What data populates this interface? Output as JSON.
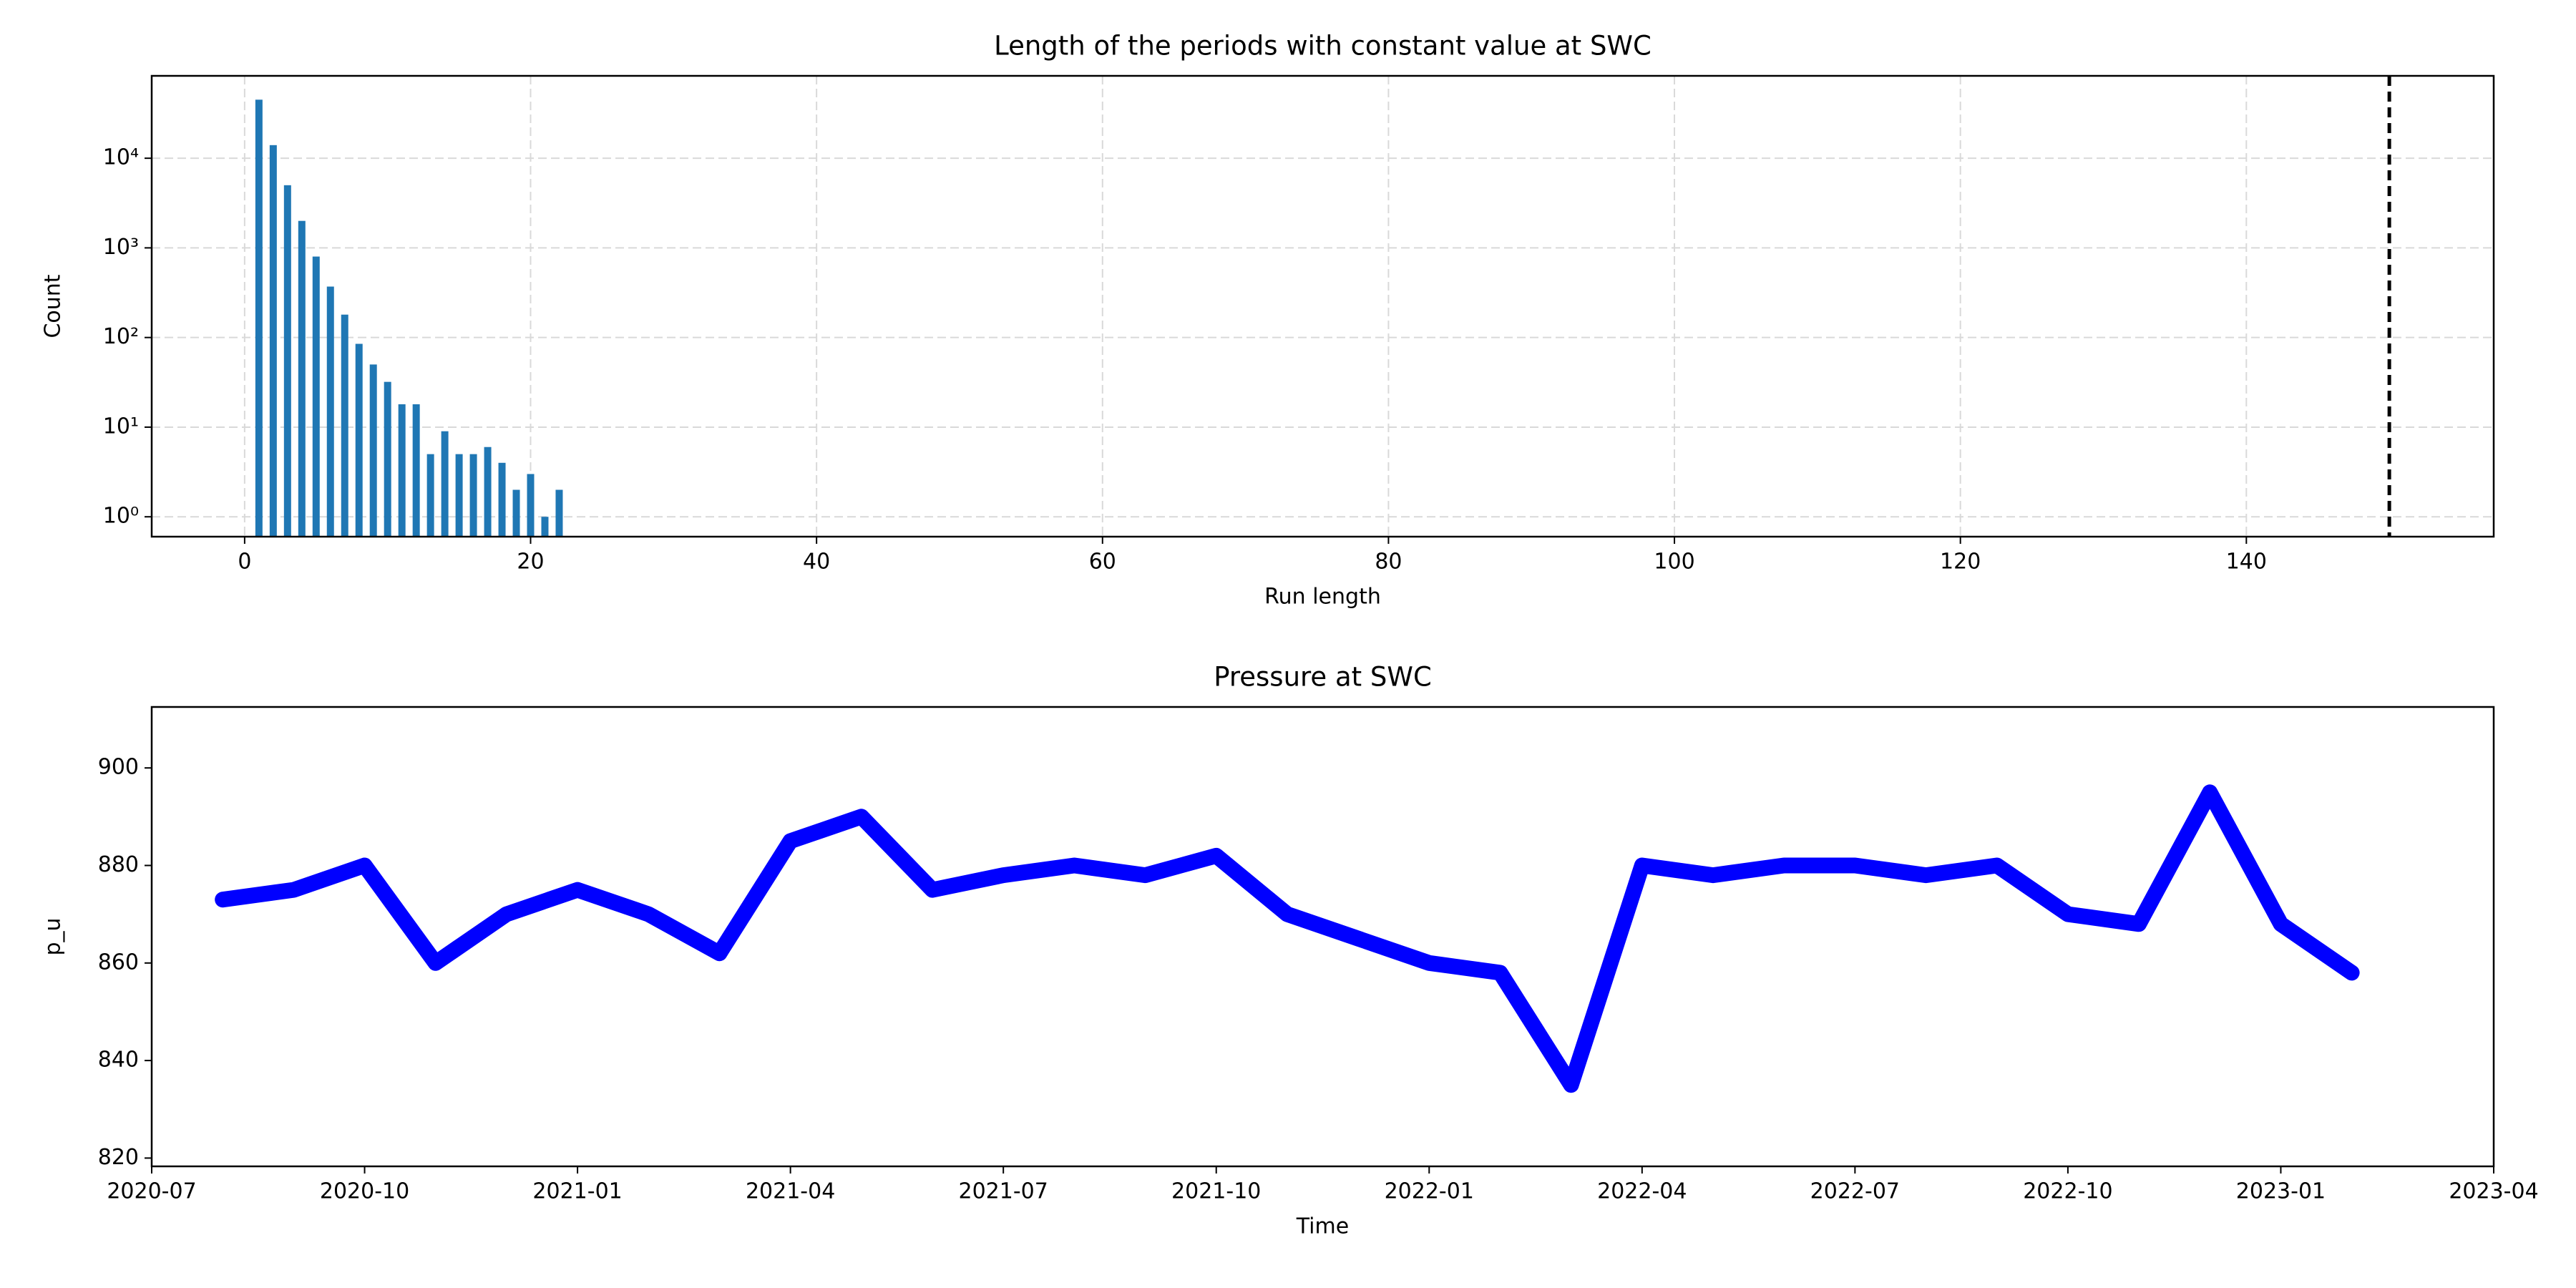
{
  "chart_data": [
    {
      "type": "bar",
      "title": "Length of the periods with constant value at SWC",
      "xlabel": "Run length",
      "ylabel": "Count",
      "x": [
        1,
        2,
        3,
        4,
        5,
        6,
        7,
        8,
        9,
        10,
        11,
        12,
        13,
        14,
        15,
        16,
        17,
        18,
        19,
        20,
        21,
        22
      ],
      "values": [
        45000,
        14000,
        5000,
        2000,
        800,
        370,
        180,
        85,
        50,
        32,
        18,
        18,
        5,
        9,
        5,
        5,
        6,
        4,
        2,
        3,
        1,
        2
      ],
      "color": "#1f77b4",
      "log_y": true,
      "grid": true,
      "vline": 150,
      "xlim": [
        -6.5,
        157.3
      ],
      "xticks": [
        0,
        20,
        40,
        60,
        80,
        100,
        120,
        140
      ],
      "ylim": [
        0.6,
        83000
      ],
      "yticks": [
        {
          "value": 1,
          "label": "10⁰"
        },
        {
          "value": 10,
          "label": "10¹"
        },
        {
          "value": 100,
          "label": "10²"
        },
        {
          "value": 1000,
          "label": "10³"
        },
        {
          "value": 10000,
          "label": "10⁴"
        }
      ]
    },
    {
      "type": "line",
      "title": "Pressure at SWC",
      "xlabel": "Time",
      "ylabel": "p_u",
      "color": "#0000ff",
      "x": [
        "2020-08",
        "2020-09",
        "2020-10",
        "2020-11",
        "2020-12",
        "2021-01",
        "2021-02",
        "2021-03",
        "2021-04",
        "2021-05",
        "2021-06",
        "2021-07",
        "2021-08",
        "2021-09",
        "2021-10",
        "2021-11",
        "2021-12",
        "2022-01",
        "2022-02",
        "2022-03",
        "2022-04",
        "2022-05",
        "2022-06",
        "2022-07",
        "2022-08",
        "2022-09",
        "2022-10",
        "2022-11",
        "2022-12",
        "2023-01",
        "2023-02"
      ],
      "values": [
        873,
        875,
        880,
        860,
        870,
        875,
        870,
        862,
        885,
        890,
        875,
        878,
        880,
        878,
        882,
        870,
        865,
        860,
        858,
        835,
        880,
        878,
        880,
        880,
        878,
        880,
        870,
        868,
        895,
        868,
        858
      ],
      "xlim": [
        "2020-07",
        "2023-04"
      ],
      "xticks": [
        "2020-07",
        "2020-10",
        "2021-01",
        "2021-04",
        "2021-07",
        "2021-10",
        "2022-01",
        "2022-04",
        "2022-07",
        "2022-10",
        "2023-01",
        "2023-04"
      ],
      "ylim": [
        818.3,
        912.5
      ],
      "yticks": [
        820,
        840,
        860,
        880,
        900
      ]
    }
  ]
}
